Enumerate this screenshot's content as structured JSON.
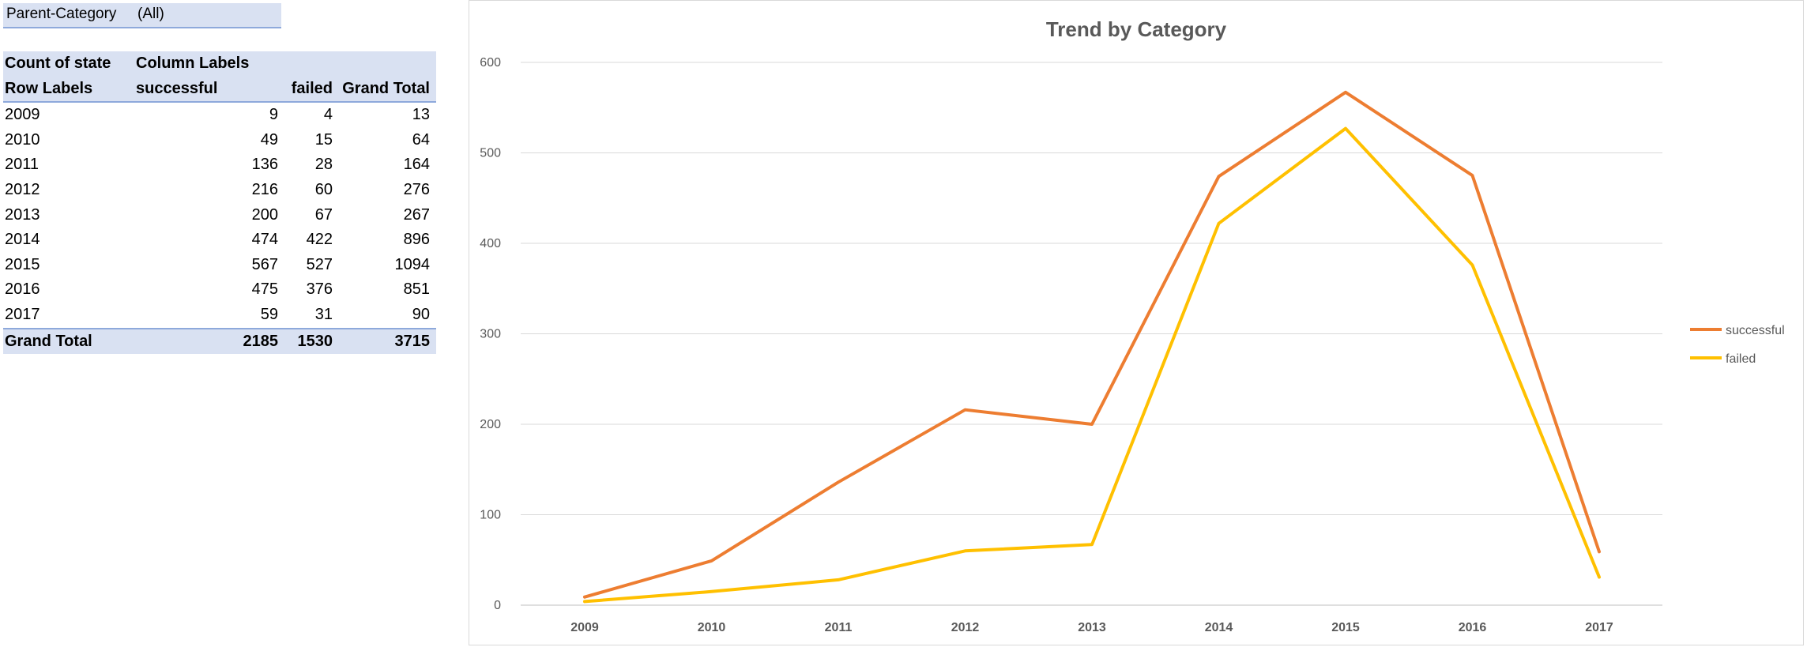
{
  "filter": {
    "label": "Parent-Category",
    "value": "(All)"
  },
  "pivot": {
    "header1": {
      "c0": "Count of state",
      "c1": "Column Labels"
    },
    "header2": {
      "c0": "Row Labels",
      "c1": "successful",
      "c2": "failed",
      "c3": "Grand Total"
    },
    "rows": [
      [
        "2009",
        "9",
        "4",
        "13"
      ],
      [
        "2010",
        "49",
        "15",
        "64"
      ],
      [
        "2011",
        "136",
        "28",
        "164"
      ],
      [
        "2012",
        "216",
        "60",
        "276"
      ],
      [
        "2013",
        "200",
        "67",
        "267"
      ],
      [
        "2014",
        "474",
        "422",
        "896"
      ],
      [
        "2015",
        "567",
        "527",
        "1094"
      ],
      [
        "2016",
        "475",
        "376",
        "851"
      ],
      [
        "2017",
        "59",
        "31",
        "90"
      ]
    ],
    "total": [
      "Grand Total",
      "2185",
      "1530",
      "3715"
    ]
  },
  "chart_data": {
    "type": "line",
    "title": "Trend by Category",
    "categories": [
      "2009",
      "2010",
      "2011",
      "2012",
      "2013",
      "2014",
      "2015",
      "2016",
      "2017"
    ],
    "series": [
      {
        "name": "successful",
        "values": [
          9,
          49,
          136,
          216,
          200,
          474,
          567,
          475,
          59
        ],
        "color": "#ed7d31"
      },
      {
        "name": "failed",
        "values": [
          4,
          15,
          28,
          60,
          67,
          422,
          527,
          376,
          31
        ],
        "color": "#ffc000"
      }
    ],
    "ylim": [
      0,
      600
    ],
    "yticks": [
      0,
      100,
      200,
      300,
      400,
      500,
      600
    ],
    "grid": true,
    "legend": "right"
  }
}
